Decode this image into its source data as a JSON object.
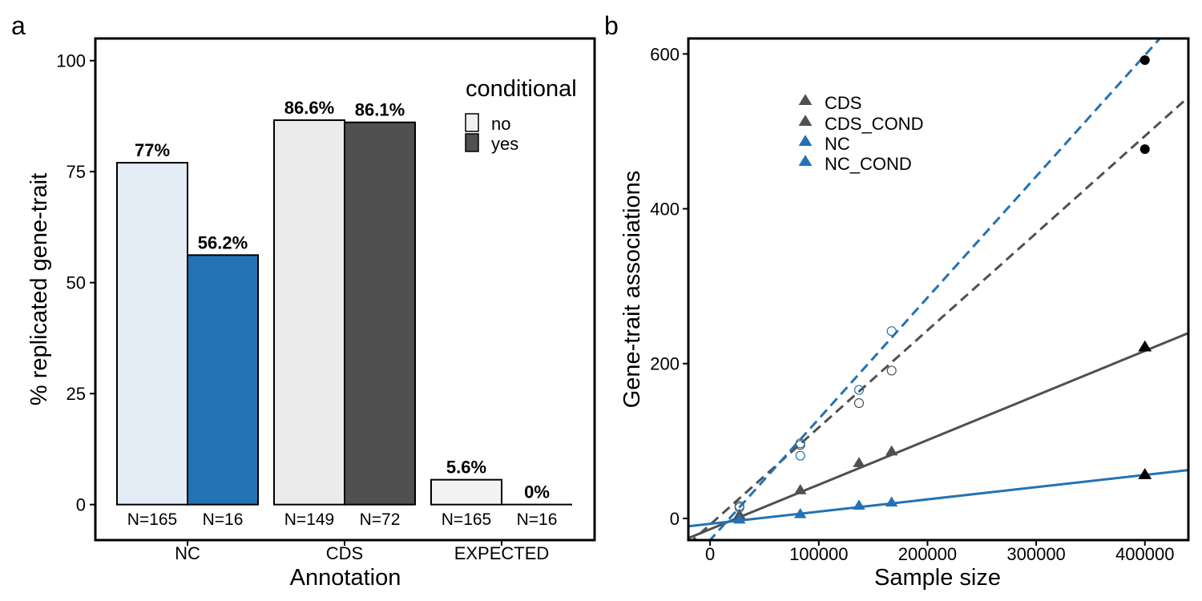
{
  "chart_data": [
    {
      "panel_label": "a",
      "type": "bar",
      "xlabel": "Annotation",
      "ylabel": "% replicated gene-trait",
      "ylim": [
        -8,
        105
      ],
      "yticks": [
        "0",
        "25",
        "50",
        "75",
        "100"
      ],
      "categories": [
        "NC",
        "CDS",
        "EXPECTED"
      ],
      "legend": {
        "title": "conditional",
        "position": "top-right",
        "entries": [
          {
            "label": "no",
            "color": "#f0f0f0"
          },
          {
            "label": "yes",
            "color": "#505050"
          }
        ]
      },
      "bars": [
        {
          "category": "NC",
          "conditional": "no",
          "value": 77,
          "label": "77%",
          "n": "N=165",
          "color": "#e4ecf5"
        },
        {
          "category": "NC",
          "conditional": "yes",
          "value": 56.2,
          "label": "56.2%",
          "n": "N=16",
          "color": "#2372b4"
        },
        {
          "category": "CDS",
          "conditional": "no",
          "value": 86.6,
          "label": "86.6%",
          "n": "N=149",
          "color": "#ebebeb"
        },
        {
          "category": "CDS",
          "conditional": "yes",
          "value": 86.1,
          "label": "86.1%",
          "n": "N=72",
          "color": "#505050"
        },
        {
          "category": "EXPECTED",
          "conditional": "no",
          "value": 5.6,
          "label": "5.6%",
          "n": "N=165",
          "color": "#f2f2f2"
        },
        {
          "category": "EXPECTED",
          "conditional": "yes",
          "value": 0,
          "label": "0%",
          "n": "N=16",
          "color": "#ffffff"
        }
      ]
    },
    {
      "panel_label": "b",
      "type": "scatter",
      "xlabel": "Sample size",
      "ylabel": "Gene-trait associations",
      "xlim": [
        -20000,
        440000
      ],
      "ylim": [
        -28,
        620
      ],
      "xticks": [
        "0",
        "100000",
        "200000",
        "300000",
        "400000"
      ],
      "yticks": [
        "0",
        "200",
        "400",
        "600"
      ],
      "legend": {
        "position": "top-left",
        "entries": [
          {
            "label": "CDS",
            "color": "#505050"
          },
          {
            "label": "CDS_COND",
            "color": "#505050"
          },
          {
            "label": "NC",
            "color": "#2372b4"
          },
          {
            "label": "NC_COND",
            "color": "#2372b4"
          }
        ]
      },
      "series": [
        {
          "name": "CDS",
          "color": "#505050",
          "marker": "triangle",
          "points": [
            [
              27000,
              5
            ],
            [
              83000,
              37
            ],
            [
              137000,
              72
            ],
            [
              167000,
              87
            ]
          ],
          "line": {
            "style": "solid",
            "slope": 0.000576,
            "intercept": -14
          }
        },
        {
          "name": "CDS_COND",
          "color": "#505050",
          "marker": "open-circle",
          "points": [
            [
              27000,
              16
            ],
            [
              83000,
              95
            ],
            [
              137000,
              149
            ],
            [
              167000,
              191
            ]
          ],
          "line": {
            "style": "dashed",
            "slope": 0.001255,
            "intercept": -8
          }
        },
        {
          "name": "NC",
          "color": "#2372b4",
          "marker": "triangle",
          "points": [
            [
              27000,
              -1
            ],
            [
              83000,
              6
            ],
            [
              137000,
              17
            ],
            [
              167000,
              21
            ]
          ],
          "line": {
            "style": "solid",
            "slope": 0.000158,
            "intercept": -7
          }
        },
        {
          "name": "NC_COND",
          "color": "#2372b4",
          "marker": "open-circle",
          "points": [
            [
              27000,
              14
            ],
            [
              83000,
              81
            ],
            [
              83000,
              97
            ],
            [
              137000,
              166
            ],
            [
              167000,
              242
            ]
          ],
          "line": {
            "style": "dashed",
            "slope": 0.001566,
            "intercept": -28
          }
        }
      ],
      "extrapolated_points": [
        {
          "series": "CDS",
          "marker": "triangle",
          "x": 400000,
          "y": 222,
          "color": "#000000"
        },
        {
          "series": "NC",
          "marker": "triangle",
          "x": 400000,
          "y": 57,
          "color": "#000000"
        },
        {
          "series": "CDS_COND",
          "marker": "filled-circle",
          "x": 400000,
          "y": 477,
          "color": "#000000"
        },
        {
          "series": "NC_COND",
          "marker": "filled-circle",
          "x": 400000,
          "y": 592,
          "color": "#000000"
        }
      ]
    }
  ]
}
